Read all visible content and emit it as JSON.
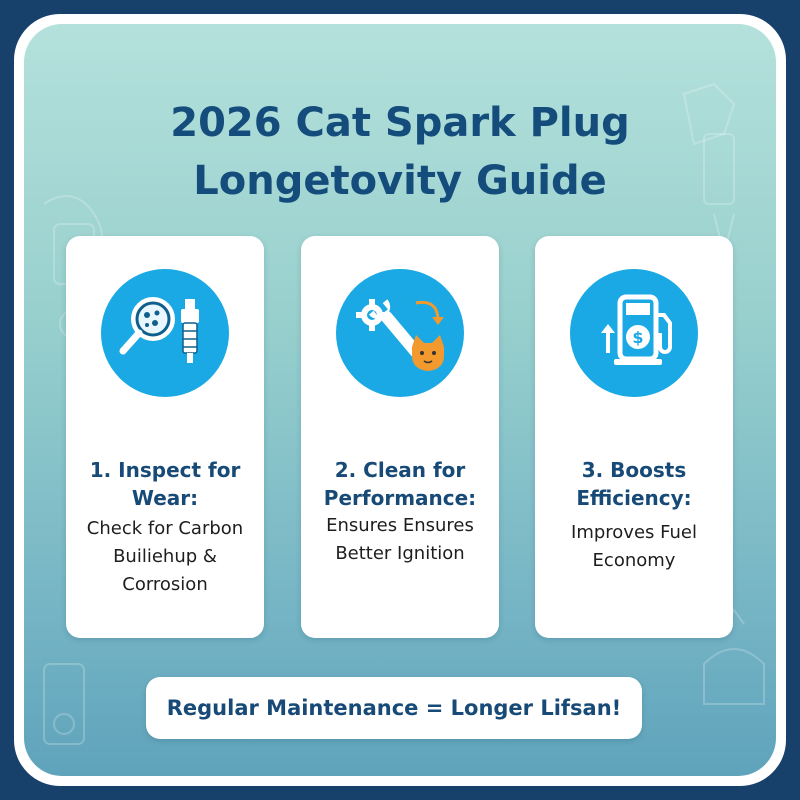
{
  "title": {
    "line1": "2026 Cat Spark Plug",
    "line2": "Longetovity Guide"
  },
  "cards": [
    {
      "title_line1": "1. Inspect for",
      "title_line2": "Wear:",
      "body": [
        "Check for Carbon",
        "Builiehup &",
        "Corrosion"
      ],
      "icon": "magnifier-spark-plug-icon"
    },
    {
      "title_line1": "2. Clean for",
      "title_line2": "Performance:",
      "body": [
        "Ensures Ensures",
        "Better Ignition"
      ],
      "icon": "gear-wrench-cat-icon"
    },
    {
      "title_line1": "3. Boosts",
      "title_line2": "Efficiency:",
      "body": [
        "Improves Fuel",
        "Economy"
      ],
      "icon": "fuel-pump-dollar-icon"
    }
  ],
  "banner": "Regular Maintenance = Longer Lifsan!",
  "colors": {
    "frame": "#17406a",
    "title": "#144c7c",
    "icon_circle": "#1aa9e4",
    "cat_orange": "#f29a2e"
  }
}
